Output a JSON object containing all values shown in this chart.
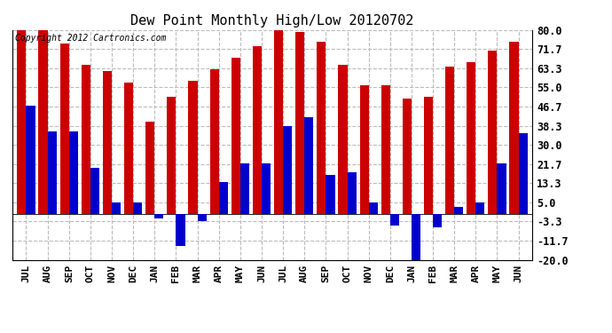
{
  "title": "Dew Point Monthly High/Low 20120702",
  "copyright": "Copyright 2012 Cartronics.com",
  "months": [
    "JUL",
    "AUG",
    "SEP",
    "OCT",
    "NOV",
    "DEC",
    "JAN",
    "FEB",
    "MAR",
    "APR",
    "MAY",
    "JUN",
    "JUL",
    "AUG",
    "SEP",
    "OCT",
    "NOV",
    "DEC",
    "JAN",
    "FEB",
    "MAR",
    "APR",
    "MAY",
    "JUN"
  ],
  "high_values": [
    80,
    80,
    74,
    65,
    62,
    57,
    40,
    51,
    58,
    63,
    68,
    73,
    82,
    79,
    75,
    65,
    56,
    56,
    50,
    51,
    64,
    66,
    71,
    75
  ],
  "low_values": [
    47,
    36,
    36,
    20,
    5,
    5,
    -2,
    -14,
    -3,
    14,
    22,
    22,
    38,
    42,
    17,
    18,
    5,
    -5,
    -20,
    -6,
    3,
    5,
    22,
    35
  ],
  "ylim": [
    -20,
    80
  ],
  "yticks": [
    -20.0,
    -11.7,
    -3.3,
    5.0,
    13.3,
    21.7,
    30.0,
    38.3,
    46.7,
    55.0,
    63.3,
    71.7,
    80.0
  ],
  "ytick_labels": [
    "-20.0",
    "-11.7",
    "-3.3",
    "5.0",
    "13.3",
    "21.7",
    "30.0",
    "38.3",
    "46.7",
    "55.0",
    "63.3",
    "71.7",
    "80.0"
  ],
  "high_color": "#cc0000",
  "low_color": "#0000cc",
  "background_color": "#ffffff",
  "grid_color": "#bbbbbb",
  "title_fontsize": 11,
  "copyright_fontsize": 7,
  "bar_width": 0.42
}
